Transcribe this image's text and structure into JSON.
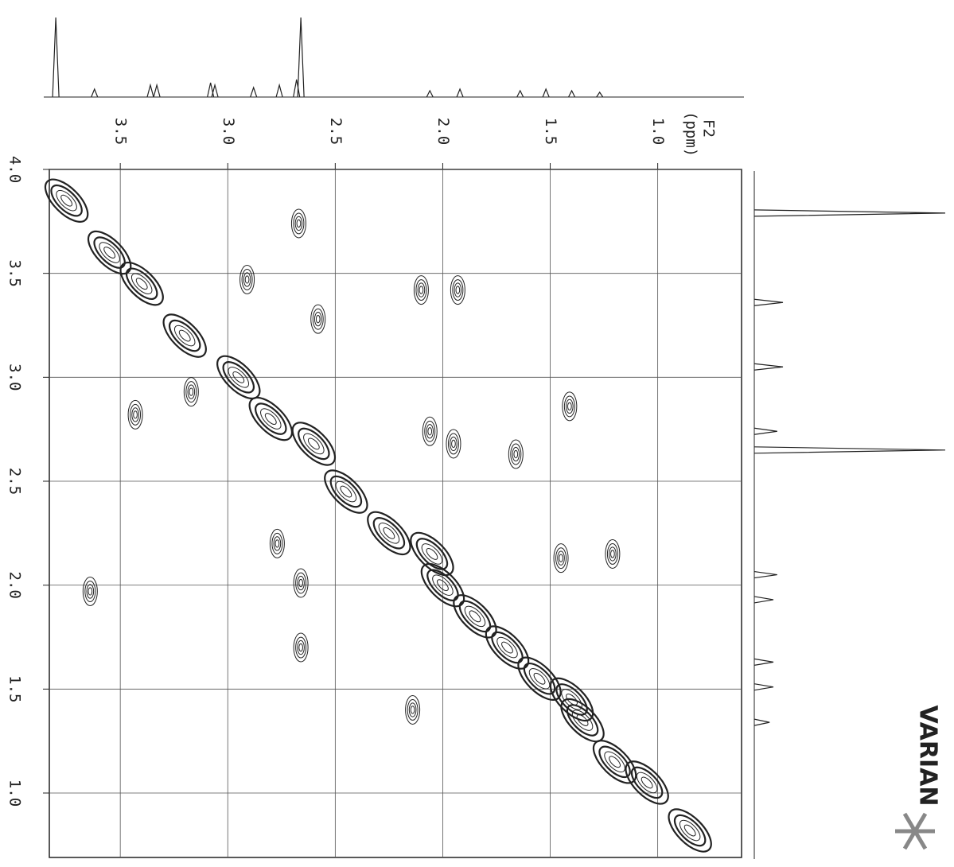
{
  "chart_data": {
    "type": "contour",
    "x_label": "F2",
    "x_unit": "(ppm)",
    "brand": "VARIAN",
    "xlim": [
      3.83,
      0.61
    ],
    "ylim": [
      4.0,
      0.69
    ],
    "xticks": [
      3.5,
      {
        "value": 3.0,
        "label": "3.0"
      },
      2.5,
      {
        "value": 2.0,
        "label": "2.0"
      },
      1.5,
      {
        "value": 1.0,
        "label": "1.0"
      }
    ],
    "yticks": [
      {
        "value": 4.0,
        "label": "4.0"
      },
      3.5,
      {
        "value": 3.0,
        "label": "3.0"
      },
      2.5,
      {
        "value": 2.0,
        "label": "2.0"
      },
      1.5,
      {
        "value": 1.0,
        "label": "1.0"
      }
    ],
    "grid": true,
    "color": "#222222",
    "peaks": {
      "x": [
        3.75,
        3.55,
        3.4,
        3.2,
        2.95,
        2.8,
        2.6,
        2.45,
        2.25,
        2.05,
        2.0,
        1.85,
        1.7,
        1.55,
        1.4,
        1.35,
        1.2,
        1.05,
        0.85,
        1.45,
        1.21,
        2.06,
        1.95,
        3.64,
        2.58,
        2.67,
        2.91,
        2.1,
        1.93,
        1.41,
        1.66,
        2.66,
        2.66,
        2.14,
        2.77,
        3.43,
        3.17
      ],
      "y": [
        3.85,
        3.6,
        3.45,
        3.2,
        3.0,
        2.8,
        2.68,
        2.45,
        2.25,
        2.15,
        2.0,
        1.85,
        1.7,
        1.55,
        1.45,
        1.35,
        1.15,
        1.05,
        0.82,
        2.13,
        2.15,
        2.74,
        2.68,
        1.97,
        3.28,
        3.74,
        3.47,
        3.42,
        3.42,
        2.86,
        2.63,
        2.01,
        1.7,
        1.4,
        2.2,
        2.82,
        2.93
      ]
    },
    "f2_projection": {
      "x": [
        3.8,
        3.62,
        3.36,
        3.33,
        3.08,
        3.06,
        2.88,
        2.76,
        2.68,
        2.66,
        2.06,
        1.92,
        1.64,
        1.52,
        1.4,
        1.27
      ],
      "intensity": [
        100,
        10,
        15,
        15,
        18,
        15,
        12,
        15,
        22,
        100,
        8,
        10,
        8,
        10,
        8,
        6
      ]
    },
    "f1_projection": {
      "y": [
        3.79,
        3.36,
        3.05,
        2.74,
        2.65,
        2.05,
        1.93,
        1.63,
        1.51,
        1.34
      ],
      "intensity": [
        100,
        15,
        15,
        12,
        100,
        12,
        10,
        10,
        10,
        8
      ]
    }
  }
}
